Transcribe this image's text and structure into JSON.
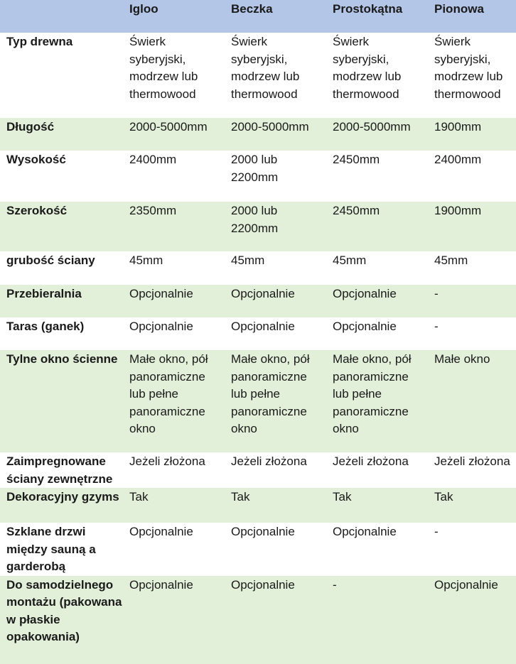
{
  "columns": [
    "",
    "Igloo",
    "Beczka",
    "Prostokątna",
    "Pionowa"
  ],
  "rows": [
    {
      "label": "Typ drewna",
      "values": [
        "Świerk syberyjski, modrzew lub thermowood",
        "Świerk syberyjski, modrzew lub thermowood",
        "Świerk syberyjski, modrzew lub thermowood",
        "Świerk syberyjski, modrzew lub thermowood"
      ]
    },
    {
      "label": "Długość",
      "values": [
        "2000-5000mm",
        "2000-5000mm",
        "2000-5000mm",
        "1900mm"
      ]
    },
    {
      "label": "Wysokość",
      "values": [
        "2400mm",
        "2000 lub 2200mm",
        "2450mm",
        "2400mm"
      ]
    },
    {
      "label": "Szerokość",
      "values": [
        "2350mm",
        "2000 lub 2200mm",
        "2450mm",
        "1900mm"
      ]
    },
    {
      "label": "grubość ściany",
      "values": [
        "45mm",
        "45mm",
        "45mm",
        "45mm"
      ]
    },
    {
      "label": "Przebieralnia",
      "values": [
        "Opcjonalnie",
        "Opcjonalnie",
        "Opcjonalnie",
        "-"
      ]
    },
    {
      "label": "Taras (ganek)",
      "values": [
        "Opcjonalnie",
        "Opcjonalnie",
        "Opcjonalnie",
        "-"
      ]
    },
    {
      "label": "Tylne okno ścienne",
      "values": [
        "Małe okno, pół panoramiczne lub pełne panoramiczne okno",
        "Małe okno, pół panoramiczne lub pełne panoramiczne okno",
        "Małe okno, pół panoramiczne lub pełne panoramiczne okno",
        "Małe okno"
      ]
    },
    {
      "label": "Zaimpregnowane ściany zewnętrzne",
      "values": [
        "Jeżeli złożona",
        "Jeżeli złożona",
        "Jeżeli złożona",
        "Jeżeli złożona"
      ]
    },
    {
      "label": "Dekoracyjny gzyms",
      "values": [
        "Tak",
        "Tak",
        "Tak",
        "Tak"
      ]
    },
    {
      "label": "Szklane drzwi między sauną a garderobą",
      "values": [
        "Opcjonalnie",
        "Opcjonalnie",
        "Opcjonalnie",
        "-"
      ]
    },
    {
      "label": "Do samodzielnego montażu (pakowana w płaskie opakowania)",
      "values": [
        "Opcjonalnie",
        "Opcjonalnie",
        "-",
        "Opcjonalnie"
      ]
    }
  ],
  "colors": {
    "header_bg": "#b4c6e7",
    "shaded_row_bg": "#e2efd9",
    "plain_row_bg": "#ffffff"
  }
}
